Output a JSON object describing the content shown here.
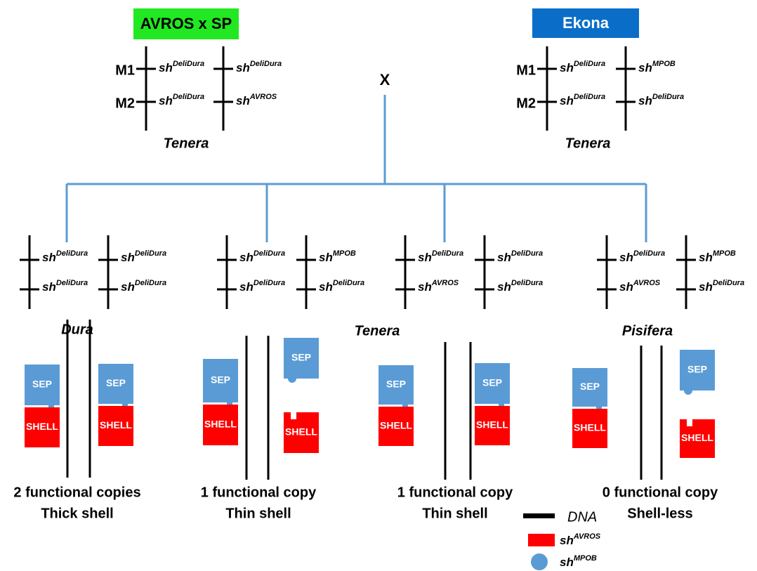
{
  "parents": [
    {
      "label": "AVROS x SP",
      "markers": [
        "M1",
        "M2"
      ],
      "rows": [
        [
          {
            "gene": "sh",
            "variant": "DeliDura"
          },
          {
            "gene": "sh",
            "variant": "DeliDura"
          }
        ],
        [
          {
            "gene": "sh",
            "variant": "DeliDura"
          },
          {
            "gene": "sh",
            "variant": "AVROS"
          }
        ]
      ],
      "type": "Tenera"
    },
    {
      "label": "Ekona",
      "markers": [
        "M1",
        "M2"
      ],
      "rows": [
        [
          {
            "gene": "sh",
            "variant": "DeliDura"
          },
          {
            "gene": "sh",
            "variant": "MPOB"
          }
        ],
        [
          {
            "gene": "sh",
            "variant": "DeliDura"
          },
          {
            "gene": "sh",
            "variant": "DeliDura"
          }
        ]
      ],
      "type": "Tenera"
    }
  ],
  "cross": "X",
  "offspring": [
    {
      "rows": [
        [
          {
            "gene": "sh",
            "variant": "DeliDura"
          },
          {
            "gene": "sh",
            "variant": "DeliDura"
          }
        ],
        [
          {
            "gene": "sh",
            "variant": "DeliDura"
          },
          {
            "gene": "sh",
            "variant": "DeliDura"
          }
        ]
      ]
    },
    {
      "rows": [
        [
          {
            "gene": "sh",
            "variant": "DeliDura"
          },
          {
            "gene": "sh",
            "variant": "MPOB"
          }
        ],
        [
          {
            "gene": "sh",
            "variant": "DeliDura"
          },
          {
            "gene": "sh",
            "variant": "DeliDura"
          }
        ]
      ]
    },
    {
      "rows": [
        [
          {
            "gene": "sh",
            "variant": "DeliDura"
          },
          {
            "gene": "sh",
            "variant": "DeliDura"
          }
        ],
        [
          {
            "gene": "sh",
            "variant": "AVROS"
          },
          {
            "gene": "sh",
            "variant": "DeliDura"
          }
        ]
      ]
    },
    {
      "rows": [
        [
          {
            "gene": "sh",
            "variant": "DeliDura"
          },
          {
            "gene": "sh",
            "variant": "MPOB"
          }
        ],
        [
          {
            "gene": "sh",
            "variant": "AVROS"
          },
          {
            "gene": "sh",
            "variant": "DeliDura"
          }
        ]
      ]
    }
  ],
  "phenotypes": [
    "Dura",
    "Tenera",
    "Pisifera"
  ],
  "panels": [
    {
      "boxes": [
        {
          "sep": "SEP",
          "shell": "SHELL"
        },
        {
          "sep": "SEP",
          "shell": "SHELL"
        }
      ],
      "caption": [
        "2 functional copies",
        "Thick shell"
      ]
    },
    {
      "boxes": [
        {
          "sep": "SEP",
          "shell": "SHELL"
        },
        {
          "sep": "SEP",
          "shell": "SHELL"
        }
      ],
      "caption": [
        "1 functional copy",
        "Thin shell"
      ]
    },
    {
      "boxes": [
        {
          "sep": "SEP",
          "shell": "SHELL"
        },
        {
          "sep": "SEP",
          "shell": "SHELL"
        }
      ],
      "caption": [
        "1 functional copy",
        "Thin shell"
      ]
    },
    {
      "boxes": [
        {
          "sep": "SEP",
          "shell": "SHELL"
        },
        {
          "sep": "SEP",
          "shell": "SHELL"
        }
      ],
      "caption": [
        "0 functional copy",
        "Shell-less"
      ]
    }
  ],
  "legend": [
    {
      "label": "DNA"
    },
    {
      "gene": "sh",
      "variant": "AVROS"
    },
    {
      "gene": "sh",
      "variant": "MPOB"
    }
  ]
}
